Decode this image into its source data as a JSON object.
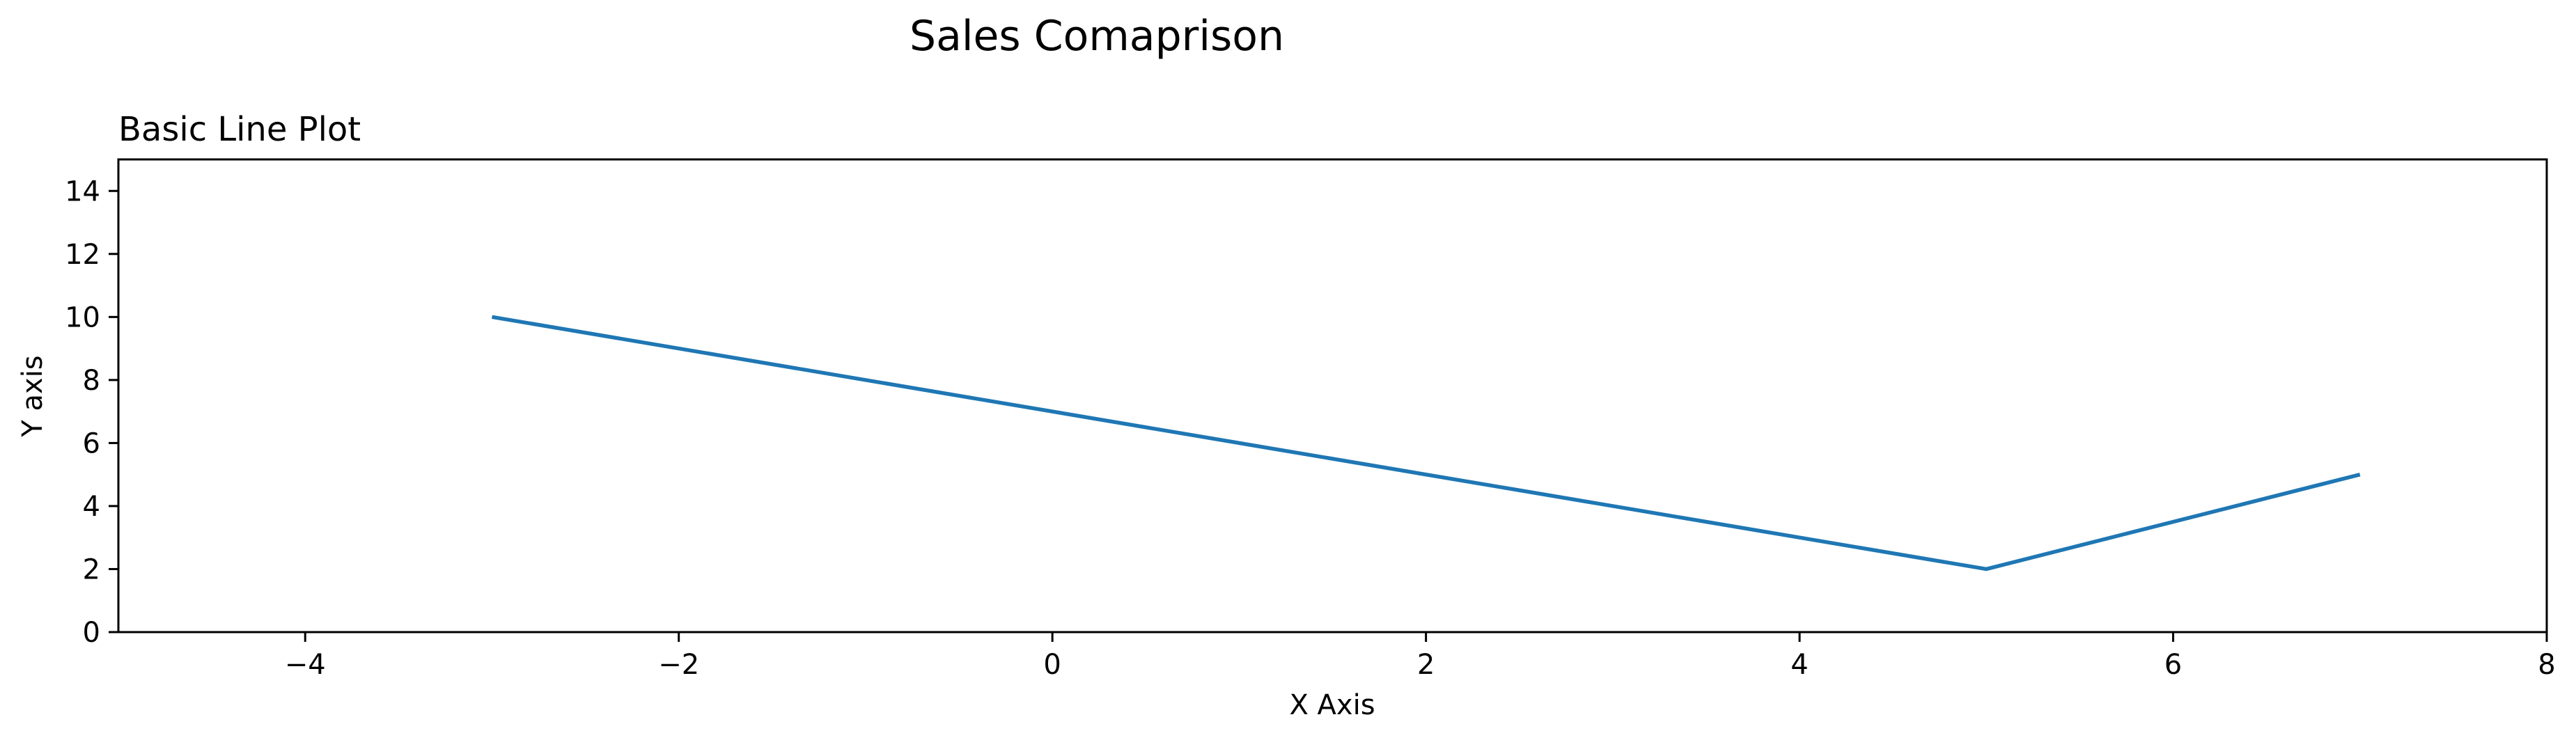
{
  "figure": {
    "suptitle": "Sales Comaprison"
  },
  "chart_data": {
    "type": "line",
    "title": "Basic Line Plot",
    "xlabel": "X Axis",
    "ylabel": "Y axis",
    "xlim": [
      -5,
      8
    ],
    "ylim": [
      0,
      15
    ],
    "xticks": [
      -4,
      -2,
      0,
      2,
      4,
      6,
      8
    ],
    "yticks": [
      0,
      2,
      4,
      6,
      8,
      10,
      12,
      14
    ],
    "xtick_labels": [
      "−4",
      "−2",
      "0",
      "2",
      "4",
      "6",
      "8"
    ],
    "ytick_labels": [
      "0",
      "2",
      "4",
      "6",
      "8",
      "10",
      "12",
      "14"
    ],
    "grid": false,
    "series": [
      {
        "x": [
          -3,
          5,
          7
        ],
        "y": [
          10,
          2,
          5
        ],
        "color": "#1f77b4"
      }
    ]
  }
}
